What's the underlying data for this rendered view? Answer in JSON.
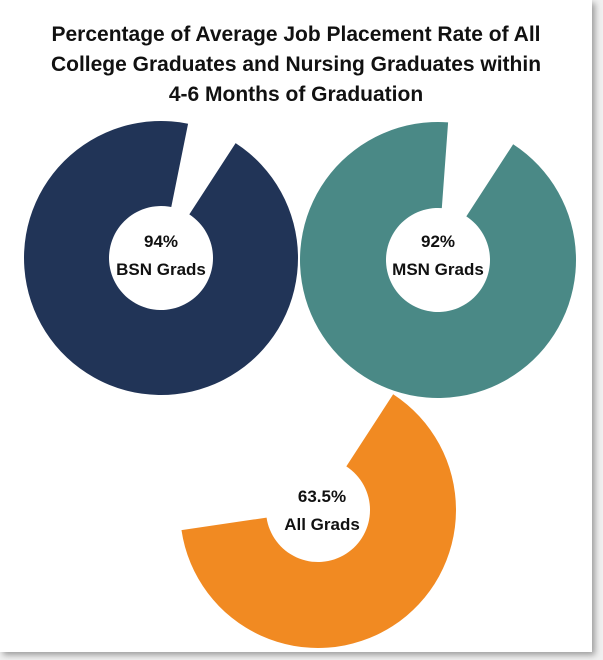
{
  "chart_data": {
    "type": "pie",
    "title_lines": [
      "Percentage of Average Job Placement Rate of All",
      "College Graduates and Nursing Graduates within",
      "4-6 Months of Graduation"
    ],
    "series": [
      {
        "value_label": "94%",
        "category": "BSN Grads",
        "value": 94,
        "color": "#213457"
      },
      {
        "value_label": "92%",
        "category": "MSN Grads",
        "value": 92,
        "color": "#4a8986"
      },
      {
        "value_label": "63.5%",
        "category": "All Grads",
        "value": 63.5,
        "color": "#f18a22"
      }
    ]
  }
}
